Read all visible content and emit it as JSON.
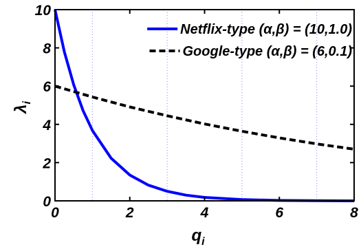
{
  "chart_data": {
    "type": "line",
    "xlabel_main": "q",
    "xlabel_sub": "i",
    "ylabel_main": "λ",
    "ylabel_sub": "i",
    "xlim": [
      0,
      8
    ],
    "ylim": [
      0,
      10
    ],
    "x_ticks": [
      "0",
      "2",
      "4",
      "6",
      "8"
    ],
    "y_ticks": [
      "0",
      "2",
      "4",
      "6",
      "8",
      "10"
    ],
    "vertical_dotted_gridlines_x": [
      1,
      3,
      5,
      7
    ],
    "legend_position": "top-right",
    "series": [
      {
        "name": "Netflix-type (α,β) = (10,1.0)",
        "color": "#0000ff",
        "style": "solid",
        "x": [
          0,
          0.25,
          0.5,
          0.75,
          1,
          1.5,
          2,
          2.5,
          3,
          3.5,
          4,
          5,
          6,
          7,
          8
        ],
        "y": [
          10,
          7.79,
          6.07,
          4.72,
          3.68,
          2.23,
          1.35,
          0.82,
          0.5,
          0.3,
          0.18,
          0.07,
          0.02,
          0.01,
          0.0
        ]
      },
      {
        "name": "Google-type (α,β) = (6,0.1)",
        "color": "#000000",
        "style": "dashed",
        "x": [
          0,
          1,
          2,
          3,
          4,
          5,
          6,
          7,
          8
        ],
        "y": [
          6,
          5.43,
          4.91,
          4.45,
          4.02,
          3.64,
          3.29,
          2.98,
          2.7
        ]
      }
    ]
  }
}
